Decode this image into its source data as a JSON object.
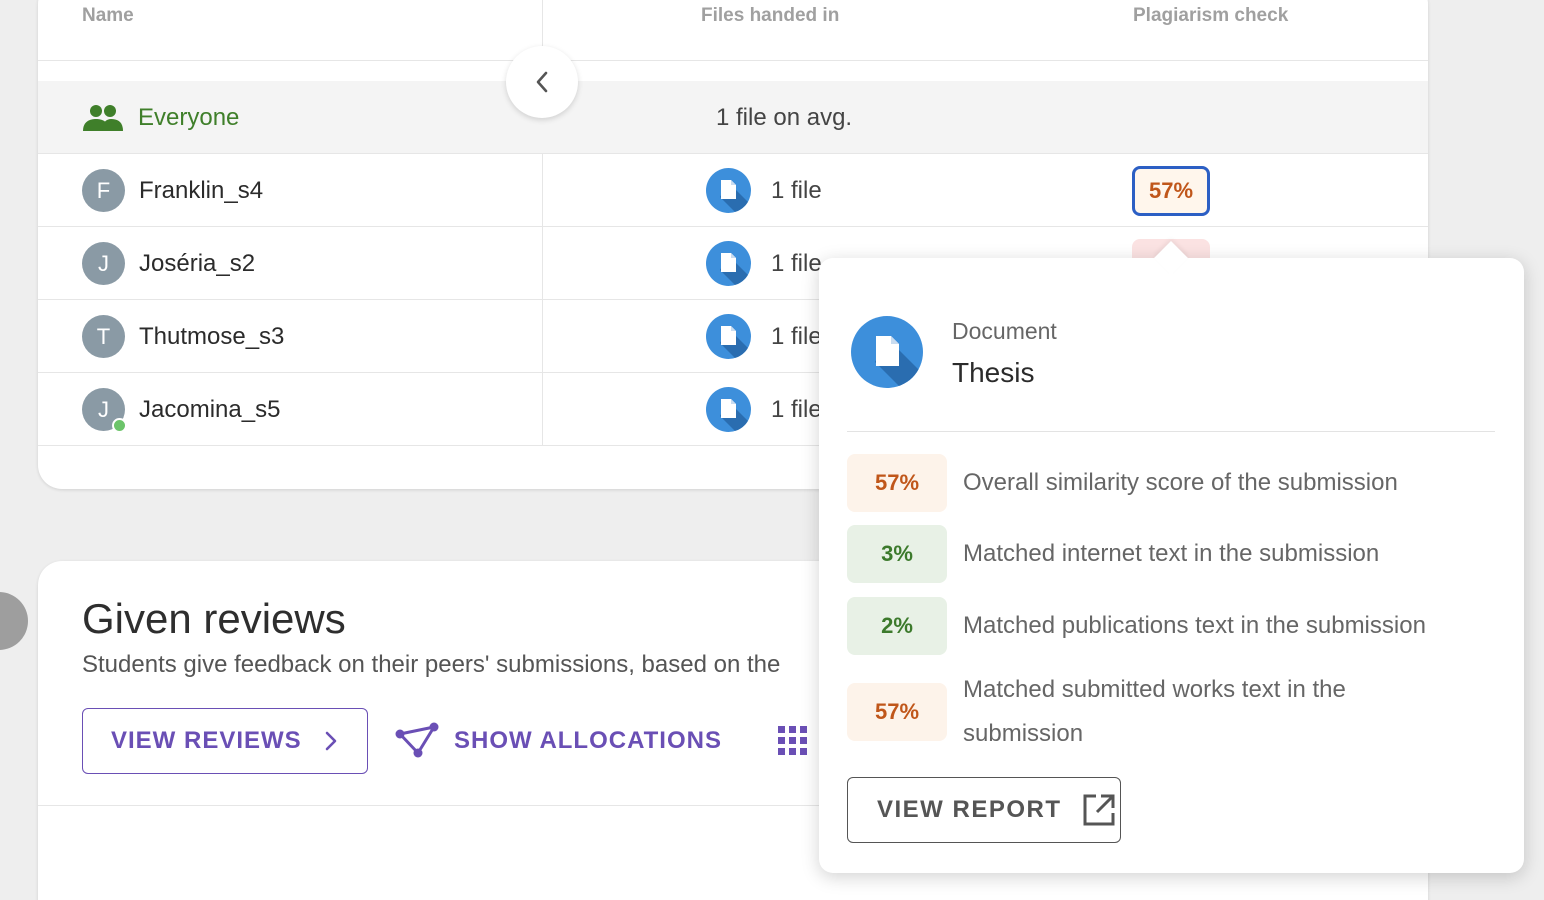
{
  "table": {
    "headers": {
      "name": "Name",
      "files": "Files handed in",
      "plagiarism": "Plagiarism check"
    },
    "everyone": {
      "label": "Everyone",
      "files": "1 file on avg."
    },
    "rows": [
      {
        "initial": "F",
        "name": "Franklin_s4",
        "files": "1 file",
        "plagiarism": "57%",
        "online": false
      },
      {
        "initial": "J",
        "name": "Joséria_s2",
        "files": "1 file",
        "plagiarism": "",
        "online": false
      },
      {
        "initial": "T",
        "name": "Thutmose_s3",
        "files": "1 file",
        "plagiarism": "",
        "online": false
      },
      {
        "initial": "J",
        "name": "Jacomina_s5",
        "files": "1 file",
        "plagiarism": "",
        "online": true
      }
    ]
  },
  "reviews": {
    "title": "Given reviews",
    "subtitle": "Students give feedback on their peers' submissions, based on the",
    "view_reviews_label": "VIEW REVIEWS",
    "show_allocations_label": "SHOW ALLOCATIONS"
  },
  "popover": {
    "doc_label": "Document",
    "doc_name": "Thesis",
    "metrics": [
      {
        "value": "57%",
        "label": "Overall similarity score of the submission",
        "tone": "orange"
      },
      {
        "value": "3%",
        "label": "Matched internet text in the submission",
        "tone": "green"
      },
      {
        "value": "2%",
        "label": "Matched publications text in the submission",
        "tone": "green"
      },
      {
        "value": "57%",
        "label": "Matched submitted works text in the submission",
        "tone": "orange"
      }
    ],
    "report_label": "VIEW REPORT"
  },
  "colors": {
    "accent_purple": "#6a4fb5",
    "everyone_green": "#3f7f2a",
    "file_blue": "#3d8fdb",
    "orange_text": "#c0561a",
    "green_text": "#3c7a2c",
    "focus_blue": "#2c5fc4"
  }
}
